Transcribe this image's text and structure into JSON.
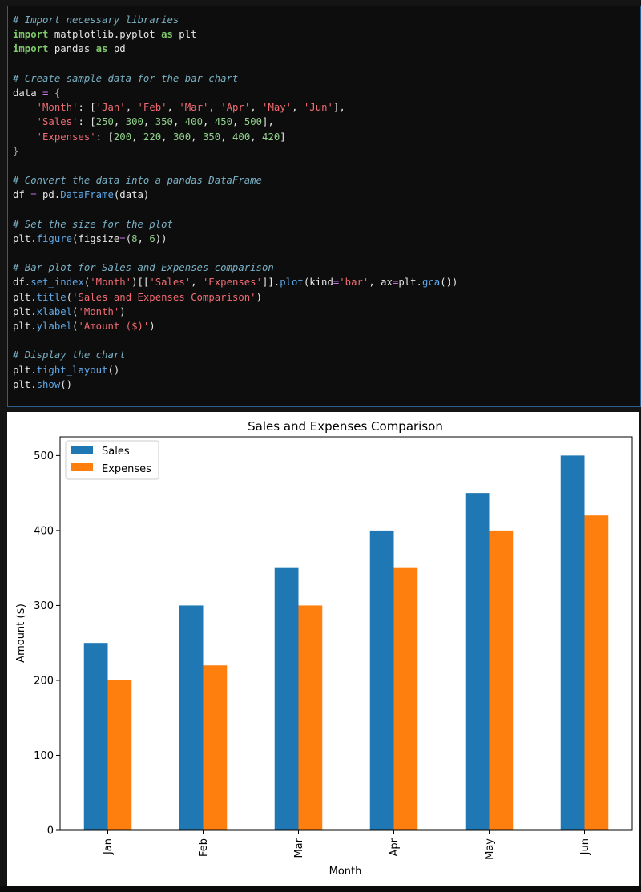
{
  "code_cell": {
    "lines": [
      [
        [
          "comment",
          "# Import necessary libraries"
        ]
      ],
      [
        [
          "keyword",
          "import"
        ],
        [
          "default",
          " matplotlib.pyplot "
        ],
        [
          "keyword",
          "as"
        ],
        [
          "default",
          " plt"
        ]
      ],
      [
        [
          "keyword",
          "import"
        ],
        [
          "default",
          " pandas "
        ],
        [
          "keyword",
          "as"
        ],
        [
          "default",
          " pd"
        ]
      ],
      [],
      [
        [
          "comment",
          "# Create sample data for the bar chart"
        ]
      ],
      [
        [
          "default",
          "data "
        ],
        [
          "op",
          "="
        ],
        [
          "default",
          " "
        ],
        [
          "brace",
          "{"
        ]
      ],
      [
        [
          "default",
          "    "
        ],
        [
          "string",
          "'Month'"
        ],
        [
          "default",
          ": ["
        ],
        [
          "string",
          "'Jan'"
        ],
        [
          "default",
          ", "
        ],
        [
          "string",
          "'Feb'"
        ],
        [
          "default",
          ", "
        ],
        [
          "string",
          "'Mar'"
        ],
        [
          "default",
          ", "
        ],
        [
          "string",
          "'Apr'"
        ],
        [
          "default",
          ", "
        ],
        [
          "string",
          "'May'"
        ],
        [
          "default",
          ", "
        ],
        [
          "string",
          "'Jun'"
        ],
        [
          "default",
          "],"
        ]
      ],
      [
        [
          "default",
          "    "
        ],
        [
          "string",
          "'Sales'"
        ],
        [
          "default",
          ": ["
        ],
        [
          "number",
          "250"
        ],
        [
          "default",
          ", "
        ],
        [
          "number",
          "300"
        ],
        [
          "default",
          ", "
        ],
        [
          "number",
          "350"
        ],
        [
          "default",
          ", "
        ],
        [
          "number",
          "400"
        ],
        [
          "default",
          ", "
        ],
        [
          "number",
          "450"
        ],
        [
          "default",
          ", "
        ],
        [
          "number",
          "500"
        ],
        [
          "default",
          "],"
        ]
      ],
      [
        [
          "default",
          "    "
        ],
        [
          "string",
          "'Expenses'"
        ],
        [
          "default",
          ": ["
        ],
        [
          "number",
          "200"
        ],
        [
          "default",
          ", "
        ],
        [
          "number",
          "220"
        ],
        [
          "default",
          ", "
        ],
        [
          "number",
          "300"
        ],
        [
          "default",
          ", "
        ],
        [
          "number",
          "350"
        ],
        [
          "default",
          ", "
        ],
        [
          "number",
          "400"
        ],
        [
          "default",
          ", "
        ],
        [
          "number",
          "420"
        ],
        [
          "default",
          "]"
        ]
      ],
      [
        [
          "brace",
          "}"
        ]
      ],
      [],
      [
        [
          "comment",
          "# Convert the data into a pandas DataFrame"
        ]
      ],
      [
        [
          "default",
          "df "
        ],
        [
          "op",
          "="
        ],
        [
          "default",
          " pd."
        ],
        [
          "func",
          "DataFrame"
        ],
        [
          "default",
          "(data)"
        ]
      ],
      [],
      [
        [
          "comment",
          "# Set the size for the plot"
        ]
      ],
      [
        [
          "default",
          "plt."
        ],
        [
          "func",
          "figure"
        ],
        [
          "default",
          "(figsize"
        ],
        [
          "op",
          "="
        ],
        [
          "default",
          "("
        ],
        [
          "number",
          "8"
        ],
        [
          "default",
          ", "
        ],
        [
          "number",
          "6"
        ],
        [
          "default",
          "))"
        ]
      ],
      [],
      [
        [
          "comment",
          "# Bar plot for Sales and Expenses comparison"
        ]
      ],
      [
        [
          "default",
          "df."
        ],
        [
          "func",
          "set_index"
        ],
        [
          "default",
          "("
        ],
        [
          "string",
          "'Month'"
        ],
        [
          "default",
          ")[["
        ],
        [
          "string",
          "'Sales'"
        ],
        [
          "default",
          ", "
        ],
        [
          "string",
          "'Expenses'"
        ],
        [
          "default",
          "]]."
        ],
        [
          "func",
          "plot"
        ],
        [
          "default",
          "(kind"
        ],
        [
          "op",
          "="
        ],
        [
          "string",
          "'bar'"
        ],
        [
          "default",
          ", ax"
        ],
        [
          "op",
          "="
        ],
        [
          "default",
          "plt."
        ],
        [
          "func",
          "gca"
        ],
        [
          "default",
          "())"
        ]
      ],
      [
        [
          "default",
          "plt."
        ],
        [
          "func",
          "title"
        ],
        [
          "default",
          "("
        ],
        [
          "string",
          "'Sales and Expenses Comparison'"
        ],
        [
          "default",
          ")"
        ]
      ],
      [
        [
          "default",
          "plt."
        ],
        [
          "func",
          "xlabel"
        ],
        [
          "default",
          "("
        ],
        [
          "string",
          "'Month'"
        ],
        [
          "default",
          ")"
        ]
      ],
      [
        [
          "default",
          "plt."
        ],
        [
          "func",
          "ylabel"
        ],
        [
          "default",
          "("
        ],
        [
          "string",
          "'Amount ($)'"
        ],
        [
          "default",
          ")"
        ]
      ],
      [],
      [
        [
          "comment",
          "# Display the chart"
        ]
      ],
      [
        [
          "default",
          "plt."
        ],
        [
          "func",
          "tight_layout"
        ],
        [
          "default",
          "()"
        ]
      ],
      [
        [
          "default",
          "plt."
        ],
        [
          "func",
          "show"
        ],
        [
          "default",
          "()"
        ]
      ]
    ]
  },
  "colors": {
    "sales": "#1f77b4",
    "expenses": "#ff7f0e",
    "cell_border": "#2a5f8f",
    "code_background": "#0d0d0d"
  },
  "chart_data": {
    "type": "bar",
    "title": "Sales and Expenses Comparison",
    "xlabel": "Month",
    "ylabel": "Amount ($)",
    "categories": [
      "Jan",
      "Feb",
      "Mar",
      "Apr",
      "May",
      "Jun"
    ],
    "series": [
      {
        "name": "Sales",
        "values": [
          250,
          300,
          350,
          400,
          450,
          500
        ],
        "color": "#1f77b4"
      },
      {
        "name": "Expenses",
        "values": [
          200,
          220,
          300,
          350,
          400,
          420
        ],
        "color": "#ff7f0e"
      }
    ],
    "ylim": [
      0,
      525
    ],
    "yticks": [
      0,
      100,
      200,
      300,
      400,
      500
    ],
    "grid": false,
    "legend_position": "upper-left"
  }
}
